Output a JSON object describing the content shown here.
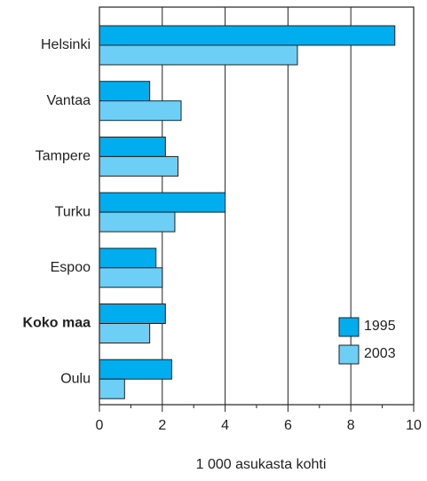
{
  "chart_data": {
    "type": "barh",
    "x_label": "1 000 asukasta kohti",
    "categories": [
      "Helsinki",
      "Vantaa",
      "Tampere",
      "Turku",
      "Espoo",
      "Koko maa",
      "Oulu"
    ],
    "bold_category_index": 5,
    "series": [
      {
        "name": "1995",
        "color": "#00aeef",
        "values": [
          9.4,
          1.6,
          2.1,
          4.0,
          1.8,
          2.1,
          2.3
        ]
      },
      {
        "name": "2003",
        "color": "#6dcff6",
        "values": [
          6.3,
          2.6,
          2.5,
          2.4,
          2.0,
          1.6,
          0.8
        ]
      }
    ],
    "xlim": [
      0,
      10
    ],
    "xticks": [
      0,
      2,
      4,
      6,
      8,
      10
    ],
    "xminor_ticks": [
      1,
      3,
      5,
      7,
      9
    ],
    "grid": true,
    "legend": "lower right"
  }
}
